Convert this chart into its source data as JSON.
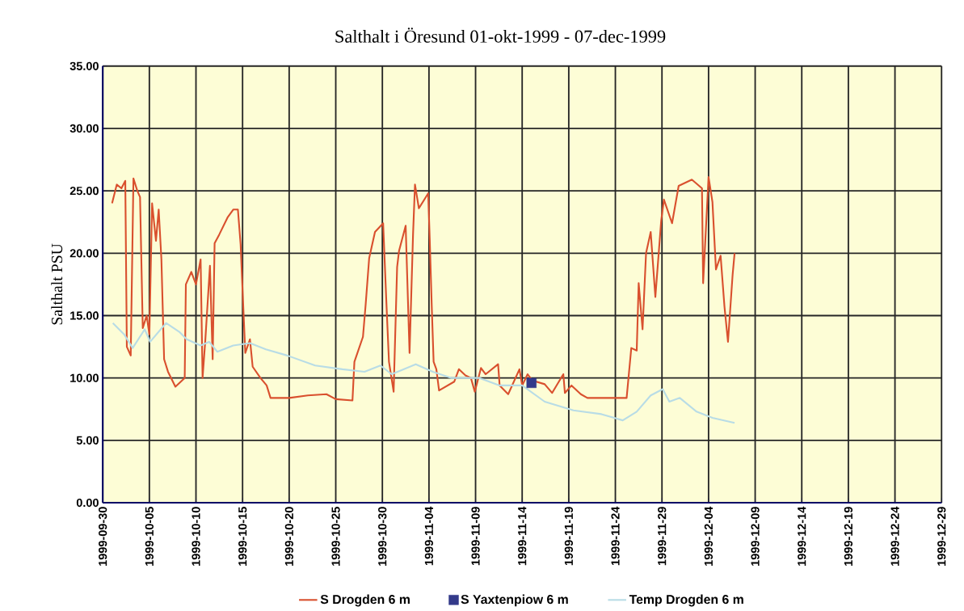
{
  "chart_data": {
    "type": "line",
    "title": "Salthalt i Öresund   01-okt-1999 - 07-dec-1999",
    "ylabel": "Salthalt PSU",
    "xlim": [
      "1999-09-30",
      "1999-12-29"
    ],
    "xticks": [
      "1999-09-30",
      "1999-10-05",
      "1999-10-10",
      "1999-10-15",
      "1999-10-20",
      "1999-10-25",
      "1999-10-30",
      "1999-11-04",
      "1999-11-09",
      "1999-11-14",
      "1999-11-19",
      "1999-11-24",
      "1999-11-29",
      "1999-12-04",
      "1999-12-09",
      "1999-12-14",
      "1999-12-19",
      "1999-12-24",
      "1999-12-29"
    ],
    "ylim": [
      0,
      35
    ],
    "yticks": [
      {
        "value": 0,
        "label": "0.00"
      },
      {
        "value": 5,
        "label": "5.00"
      },
      {
        "value": 10,
        "label": "10.00"
      },
      {
        "value": 15,
        "label": "15.00"
      },
      {
        "value": 20,
        "label": "20.00"
      },
      {
        "value": 25,
        "label": "25.00"
      },
      {
        "value": 30,
        "label": "30.00"
      },
      {
        "value": 35,
        "label": "35.00"
      }
    ],
    "grid": true,
    "legend": "bottom",
    "marker": "none",
    "line_style": "solid",
    "series": [
      {
        "name": "S Drogden 6 m",
        "color": "#d9502e",
        "x": [
          "1999-10-01T00:00",
          "1999-10-01T12:00",
          "1999-10-02T00:00",
          "1999-10-02T10:00",
          "1999-10-02T14:00",
          "1999-10-03T00:00",
          "1999-10-03T07:00",
          "1999-10-03T17:00",
          "1999-10-04T00:00",
          "1999-10-04T07:00",
          "1999-10-04T17:00",
          "1999-10-05T00:00",
          "1999-10-05T07:00",
          "1999-10-05T17:00",
          "1999-10-06T00:00",
          "1999-10-06T07:00",
          "1999-10-06T14:00",
          "1999-10-07T00:00",
          "1999-10-07T19:00",
          "1999-10-08T19:00",
          "1999-10-08T22:00",
          "1999-10-09T12:00",
          "1999-10-10T00:00",
          "1999-10-10T12:00",
          "1999-10-10T17:00",
          "1999-10-11T00:00",
          "1999-10-11T12:00",
          "1999-10-11T19:00",
          "1999-10-12T00:00",
          "1999-10-12T12:00",
          "1999-10-13T10:00",
          "1999-10-14T00:00",
          "1999-10-14T12:00",
          "1999-10-14T19:00",
          "1999-10-15T00:00",
          "1999-10-15T07:00",
          "1999-10-15T19:00",
          "1999-10-16T02:00",
          "1999-10-16T22:00",
          "1999-10-17T14:00",
          "1999-10-18T00:00",
          "1999-10-20T00:00",
          "1999-10-22T00:00",
          "1999-10-24T00:00",
          "1999-10-25T00:00",
          "1999-10-26T19:00",
          "1999-10-27T00:00",
          "1999-10-27T22:00",
          "1999-10-28T05:00",
          "1999-10-28T14:00",
          "1999-10-29T05:00",
          "1999-10-30T02:00",
          "1999-10-30T10:00",
          "1999-10-30T17:00",
          "1999-10-31T05:00",
          "1999-10-31T14:00",
          "1999-10-31T19:00",
          "1999-11-01T12:00",
          "1999-11-01T22:00",
          "1999-11-02T07:00",
          "1999-11-02T12:00",
          "1999-11-02T22:00",
          "1999-11-03T22:00",
          "1999-11-04T02:00",
          "1999-11-04T07:00",
          "1999-11-04T12:00",
          "1999-11-04T19:00",
          "1999-11-05T02:00",
          "1999-11-06T17:00",
          "1999-11-07T05:00",
          "1999-11-07T22:00",
          "1999-11-08T12:00",
          "1999-11-08T22:00",
          "1999-11-09T14:00",
          "1999-11-10T02:00",
          "1999-11-11T10:00",
          "1999-11-11T14:00",
          "1999-11-12T12:00",
          "1999-11-13T17:00",
          "1999-11-14T00:00",
          "1999-11-14T14:00",
          "1999-11-15T02:00",
          "1999-11-16T10:00",
          "1999-11-17T05:00",
          "1999-11-18T10:00",
          "1999-11-18T14:00",
          "1999-11-19T07:00",
          "1999-11-20T07:00",
          "1999-11-21T00:00",
          "1999-11-23T22:00",
          "1999-11-25T05:00",
          "1999-11-25T17:00",
          "1999-11-26T07:00",
          "1999-11-26T12:00",
          "1999-11-26T22:00",
          "1999-11-27T07:00",
          "1999-11-27T19:00",
          "1999-11-28T07:00",
          "1999-11-28T22:00",
          "1999-11-29T05:00",
          "1999-11-30T02:00",
          "1999-11-30T19:00",
          "1999-12-02T05:00",
          "1999-12-03T07:00",
          "1999-12-03T10:00",
          "1999-12-04T00:00",
          "1999-12-04T10:00",
          "1999-12-04T19:00",
          "1999-12-05T07:00",
          "1999-12-05T17:00",
          "1999-12-06T02:00",
          "1999-12-06T14:00",
          "1999-12-06T19:00"
        ],
        "values": [
          24.0,
          25.5,
          25.2,
          25.8,
          12.5,
          11.8,
          26.0,
          25.0,
          24.5,
          14.0,
          15.0,
          13.5,
          24.0,
          21.0,
          23.5,
          19.5,
          11.5,
          10.5,
          9.3,
          10.0,
          17.5,
          18.5,
          17.5,
          19.5,
          10.0,
          13.0,
          19.0,
          11.5,
          20.8,
          21.5,
          22.9,
          23.5,
          23.5,
          20.7,
          17.0,
          12.0,
          13.1,
          10.9,
          10.0,
          9.4,
          8.4,
          8.4,
          8.6,
          8.7,
          8.3,
          8.2,
          11.3,
          13.3,
          15.9,
          19.6,
          21.7,
          22.4,
          16.3,
          11.3,
          8.9,
          18.9,
          20.2,
          22.2,
          12.0,
          21.5,
          25.5,
          23.6,
          24.8,
          21.1,
          15.9,
          11.3,
          10.7,
          9.0,
          9.7,
          10.7,
          10.2,
          10.0,
          8.9,
          10.8,
          10.3,
          11.1,
          9.4,
          8.7,
          10.7,
          9.4,
          10.3,
          9.8,
          9.5,
          8.8,
          10.3,
          8.8,
          9.4,
          8.7,
          8.4,
          8.4,
          8.4,
          12.4,
          12.2,
          17.6,
          13.9,
          20.0,
          21.7,
          16.5,
          22.6,
          24.3,
          22.4,
          25.4,
          25.9,
          25.2,
          17.6,
          26.1,
          24.1,
          18.7,
          19.8,
          15.7,
          12.9,
          18.3,
          20.0
        ]
      },
      {
        "name": "S Yaxtenpiow 6 m",
        "type": "scatter",
        "marker": "square",
        "color": "#333a8a",
        "x": [
          "1999-11-15T00:00"
        ],
        "values": [
          9.6
        ]
      },
      {
        "name": "Temp Drogden 6 m",
        "color": "#b8dce6",
        "x": [
          "1999-10-01T02:00",
          "1999-10-02T07:00",
          "1999-10-03T05:00",
          "1999-10-04T12:00",
          "1999-10-05T02:00",
          "1999-10-06T19:00",
          "1999-10-08T05:00",
          "1999-10-09T00:00",
          "1999-10-10T12:00",
          "1999-10-11T10:00",
          "1999-10-12T07:00",
          "1999-10-14T00:00",
          "1999-10-15T19:00",
          "1999-10-17T12:00",
          "1999-10-19T19:00",
          "1999-10-22T19:00",
          "1999-10-25T17:00",
          "1999-10-28T02:00",
          "1999-10-29T19:00",
          "1999-10-31T00:00",
          "1999-11-02T14:00",
          "1999-11-04T10:00",
          "1999-11-06T10:00",
          "1999-11-09T10:00",
          "1999-11-11T14:00",
          "1999-11-14T00:00",
          "1999-11-16T10:00",
          "1999-11-19T12:00",
          "1999-11-22T12:00",
          "1999-11-24T19:00",
          "1999-11-26T07:00",
          "1999-11-27T19:00",
          "1999-11-29T02:00",
          "1999-11-29T19:00",
          "1999-11-30T22:00",
          "1999-12-02T17:00",
          "1999-12-04T10:00",
          "1999-12-06T19:00"
        ],
        "values": [
          14.4,
          13.5,
          12.4,
          13.9,
          12.9,
          14.4,
          13.7,
          13.1,
          12.6,
          12.9,
          12.1,
          12.6,
          12.8,
          12.3,
          11.8,
          11.0,
          10.7,
          10.5,
          11.0,
          10.3,
          11.1,
          10.5,
          10.0,
          10.0,
          9.4,
          9.4,
          8.1,
          7.4,
          7.1,
          6.6,
          7.3,
          8.6,
          9.1,
          8.1,
          8.4,
          7.3,
          6.8,
          6.4
        ]
      }
    ]
  }
}
